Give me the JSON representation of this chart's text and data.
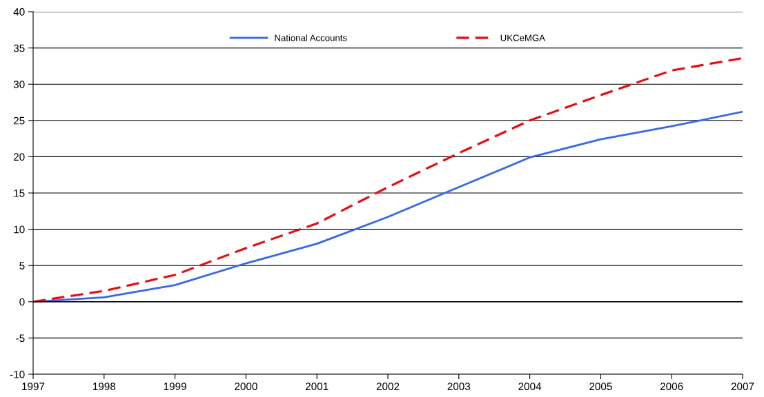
{
  "chart_data": {
    "type": "line",
    "x": [
      1997,
      1998,
      1999,
      2000,
      2001,
      2002,
      2003,
      2004,
      2005,
      2006,
      2007
    ],
    "series": [
      {
        "name": "National Accounts",
        "color": "#3366ff",
        "line_style": "solid",
        "values": [
          0,
          0.6,
          2.3,
          5.3,
          8.0,
          11.7,
          15.8,
          19.9,
          22.4,
          24.2,
          26.2
        ]
      },
      {
        "name": "UKCeMGA",
        "color": "#ff0000",
        "line_style": "dashed",
        "values": [
          0,
          1.5,
          3.7,
          7.4,
          10.8,
          15.8,
          20.5,
          25.0,
          28.5,
          31.9,
          33.6
        ]
      }
    ],
    "xlim": [
      1997,
      2007
    ],
    "xticks": [
      1997,
      1998,
      1999,
      2000,
      2001,
      2002,
      2003,
      2004,
      2005,
      2006,
      2007
    ],
    "ylim": [
      -10,
      40
    ],
    "yticks": [
      -10,
      -5,
      0,
      5,
      10,
      15,
      20,
      25,
      30,
      35,
      40
    ],
    "grid": "y",
    "legend": "top",
    "marker": "none"
  }
}
